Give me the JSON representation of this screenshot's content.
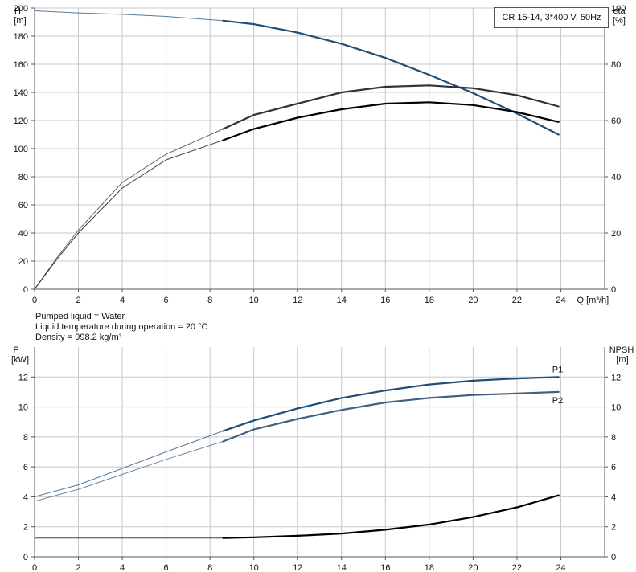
{
  "info": {
    "pumped_liquid": "Pumped liquid = Water",
    "temperature": "Liquid temperature during operation = 20 °C",
    "density": "Density = 998.2 kg/m³"
  },
  "chart_data": [
    {
      "type": "line",
      "title": "CR 15-14, 3*400 V, 50Hz",
      "ylabel_left": "H\n[m]",
      "ylabel_right": "eta\n[%]",
      "xlabel": "Q [m³/h]",
      "xlim": [
        0,
        26
      ],
      "ylim_left": [
        0,
        200
      ],
      "ylim_right": [
        0,
        100
      ],
      "x_ticks": [
        0,
        2,
        4,
        6,
        8,
        10,
        12,
        14,
        16,
        18,
        20,
        22,
        24
      ],
      "y_ticks_left": [
        0,
        20,
        40,
        60,
        80,
        100,
        120,
        140,
        160,
        180,
        200
      ],
      "y_ticks_right": [
        0,
        20,
        40,
        60,
        80,
        100
      ],
      "grid": true,
      "series": [
        {
          "name": "",
          "role": "H",
          "color": "#1f4e79",
          "x": [
            0,
            2,
            4,
            6,
            8.6,
            10,
            12,
            14,
            16,
            18,
            20,
            22,
            23.9
          ],
          "y": [
            198,
            196.5,
            195.5,
            194,
            191,
            188.5,
            182.5,
            174.5,
            164.5,
            152.5,
            139.5,
            125,
            110
          ]
        },
        {
          "name": "",
          "role": "eta",
          "color": "#333333",
          "x": [
            0,
            1,
            2,
            4,
            6,
            8.6,
            10,
            12,
            14,
            16,
            18,
            20,
            22,
            23.9
          ],
          "y": [
            0,
            11,
            21,
            38,
            48,
            57,
            62,
            66,
            70,
            72,
            72.5,
            71.5,
            69,
            65
          ]
        },
        {
          "name": "",
          "role": "eta",
          "color": "#000000",
          "x": [
            0,
            1,
            2,
            4,
            6,
            8.6,
            10,
            12,
            14,
            16,
            18,
            20,
            22,
            23.9
          ],
          "y": [
            0,
            10.5,
            20,
            36,
            46,
            53,
            57,
            61,
            64,
            66,
            66.5,
            65.5,
            63,
            59.5
          ]
        }
      ]
    },
    {
      "type": "line",
      "ylabel_left": "P\n[kW]",
      "ylabel_right": "NPSH\n[m]",
      "xlim": [
        0,
        26
      ],
      "ylim_left": [
        0,
        14
      ],
      "ylim_right": [
        0,
        14
      ],
      "x_ticks": [
        0,
        2,
        4,
        6,
        8,
        10,
        12,
        14,
        16,
        18,
        20,
        22,
        24
      ],
      "y_ticks_left": [
        0,
        2,
        4,
        6,
        8,
        10,
        12
      ],
      "y_ticks_right": [
        0,
        2,
        4,
        6,
        8,
        10,
        12
      ],
      "grid": true,
      "series": [
        {
          "name": "P1",
          "color": "#1f4e79",
          "x": [
            0,
            2,
            4,
            6,
            8.6,
            10,
            12,
            14,
            16,
            18,
            20,
            22,
            23.9
          ],
          "y": [
            4.0,
            4.8,
            5.9,
            7.0,
            8.4,
            9.1,
            9.9,
            10.6,
            11.1,
            11.5,
            11.75,
            11.9,
            12.0
          ]
        },
        {
          "name": "P2",
          "color": "#41607f",
          "x": [
            0,
            2,
            4,
            6,
            8.6,
            10,
            12,
            14,
            16,
            18,
            20,
            22,
            23.9
          ],
          "y": [
            3.7,
            4.5,
            5.5,
            6.5,
            7.7,
            8.5,
            9.2,
            9.8,
            10.3,
            10.6,
            10.8,
            10.9,
            11.0
          ]
        },
        {
          "name": "",
          "role": "NPSH",
          "color": "#000000",
          "x": [
            0,
            4,
            8.6,
            10,
            12,
            14,
            16,
            18,
            20,
            22,
            23.9
          ],
          "y": [
            1.25,
            1.25,
            1.25,
            1.3,
            1.4,
            1.55,
            1.8,
            2.15,
            2.65,
            3.3,
            4.1
          ]
        }
      ]
    }
  ]
}
